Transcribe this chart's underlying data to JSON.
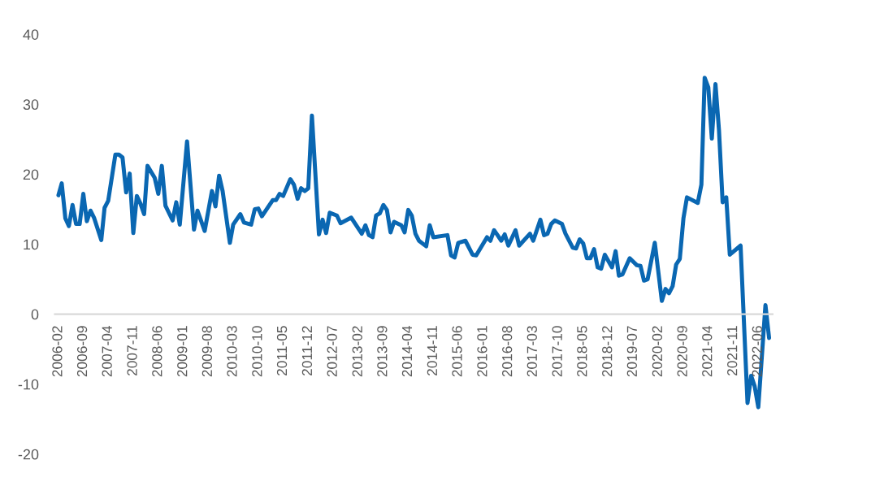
{
  "chart_data": {
    "type": "line",
    "x": [
      "2006-02",
      "2006-03",
      "2006-04",
      "2006-05",
      "2006-06",
      "2006-07",
      "2006-08",
      "2006-09",
      "2006-10",
      "2006-11",
      "2006-12",
      "2007-02",
      "2007-03",
      "2007-04",
      "2007-06",
      "2007-07",
      "2007-08",
      "2007-09",
      "2007-10",
      "2007-11",
      "2007-12",
      "2008-01",
      "2008-02",
      "2008-03",
      "2008-05",
      "2008-06",
      "2008-07",
      "2008-08",
      "2008-10",
      "2008-11",
      "2008-12",
      "2009-02",
      "2009-04",
      "2009-05",
      "2009-07",
      "2009-09",
      "2009-10",
      "2009-11",
      "2009-12",
      "2010-02",
      "2010-03",
      "2010-05",
      "2010-06",
      "2010-08",
      "2010-09",
      "2010-10",
      "2010-11",
      "2011-02",
      "2011-03",
      "2011-04",
      "2011-05",
      "2011-07",
      "2011-08",
      "2011-09",
      "2011-10",
      "2011-11",
      "2011-12",
      "2012-01",
      "2012-03",
      "2012-04",
      "2012-05",
      "2012-06",
      "2012-08",
      "2012-09",
      "2012-12",
      "2013-03",
      "2013-04",
      "2013-05",
      "2013-06",
      "2013-07",
      "2013-08",
      "2013-09",
      "2013-10",
      "2013-11",
      "2013-12",
      "2014-02",
      "2014-03",
      "2014-04",
      "2014-05",
      "2014-06",
      "2014-07",
      "2014-09",
      "2014-10",
      "2014-11",
      "2015-03",
      "2015-04",
      "2015-05",
      "2015-06",
      "2015-08",
      "2015-10",
      "2015-11",
      "2016-02",
      "2016-03",
      "2016-04",
      "2016-05",
      "2016-06",
      "2016-07",
      "2016-08",
      "2016-10",
      "2016-11",
      "2017-02",
      "2017-03",
      "2017-05",
      "2017-06",
      "2017-07",
      "2017-08",
      "2017-09",
      "2017-11",
      "2017-12",
      "2018-02",
      "2018-03",
      "2018-04",
      "2018-05",
      "2018-06",
      "2018-07",
      "2018-08",
      "2018-09",
      "2018-10",
      "2018-11",
      "2019-01",
      "2019-02",
      "2019-03",
      "2019-04",
      "2019-06",
      "2019-08",
      "2019-09",
      "2019-10",
      "2019-11",
      "2020-01",
      "2020-03",
      "2020-04",
      "2020-05",
      "2020-06",
      "2020-07",
      "2020-08",
      "2020-09",
      "2020-10",
      "2021-01",
      "2021-02",
      "2021-03",
      "2021-04",
      "2021-05",
      "2021-06",
      "2021-07",
      "2021-08",
      "2021-09",
      "2021-10",
      "2022-01",
      "2022-03",
      "2022-04",
      "2022-05",
      "2022-06",
      "2022-08",
      "2022-09"
    ],
    "series": [
      {
        "color": "#0a67b2",
        "values": [
          17.0,
          18.7,
          13.7,
          12.6,
          15.6,
          12.9,
          12.9,
          17.2,
          13.3,
          14.8,
          13.8,
          10.6,
          15.2,
          16.2,
          22.8,
          22.8,
          22.4,
          17.4,
          20.1,
          11.6,
          16.9,
          15.8,
          14.3,
          21.2,
          19.5,
          17.2,
          21.2,
          15.5,
          13.4,
          16.0,
          12.8,
          24.7,
          12.1,
          14.8,
          11.9,
          17.6,
          15.4,
          19.8,
          17.6,
          10.2,
          12.8,
          14.3,
          13.1,
          12.8,
          15.0,
          15.1,
          14.0,
          16.3,
          16.3,
          17.2,
          16.9,
          19.3,
          18.5,
          16.5,
          18.0,
          17.6,
          18.0,
          28.4,
          11.4,
          13.5,
          11.6,
          14.5,
          14.1,
          13.0,
          13.8,
          11.5,
          12.7,
          11.3,
          11.0,
          14.1,
          14.4,
          15.6,
          14.9,
          11.7,
          13.2,
          12.7,
          11.7,
          14.9,
          14.1,
          11.5,
          10.5,
          9.7,
          12.7,
          11.0,
          11.3,
          8.4,
          8.1,
          10.2,
          10.5,
          8.5,
          8.4,
          11.0,
          10.5,
          12.0,
          11.3,
          10.5,
          11.4,
          9.8,
          12.0,
          9.8,
          11.5,
          10.5,
          13.5,
          11.3,
          11.5,
          12.9,
          13.4,
          12.9,
          11.5,
          9.5,
          9.4,
          10.7,
          10.1,
          8.0,
          8.0,
          9.3,
          6.7,
          6.5,
          8.5,
          6.7,
          9.0,
          5.5,
          5.7,
          8.0,
          7.0,
          6.9,
          4.8,
          5.0,
          10.2,
          1.9,
          3.6,
          3.0,
          4.0,
          7.1,
          7.9,
          13.7,
          16.7,
          15.9,
          18.5,
          33.8,
          32.4,
          25.1,
          32.9,
          26.3,
          16.0,
          16.7,
          8.5,
          9.8,
          -12.7,
          -8.8,
          -10.3,
          -13.3,
          1.3,
          -3.4
        ]
      }
    ],
    "xlim": [
      "2006-01",
      "2022-10"
    ],
    "xticks": [
      "2006-02",
      "2006-09",
      "2007-04",
      "2007-11",
      "2008-06",
      "2009-01",
      "2009-08",
      "2010-03",
      "2010-10",
      "2011-05",
      "2011-12",
      "2012-07",
      "2013-02",
      "2013-09",
      "2014-04",
      "2014-11",
      "2015-06",
      "2016-01",
      "2016-08",
      "2017-03",
      "2017-10",
      "2018-05",
      "2018-12",
      "2019-07",
      "2020-02",
      "2020-09",
      "2021-04",
      "2021-11",
      "2022-06"
    ],
    "ylim": [
      -20,
      40
    ],
    "yticks": [
      -20,
      -10,
      0,
      10,
      20,
      30,
      40
    ],
    "grid": false,
    "marker": "none",
    "line_style": "solid"
  }
}
